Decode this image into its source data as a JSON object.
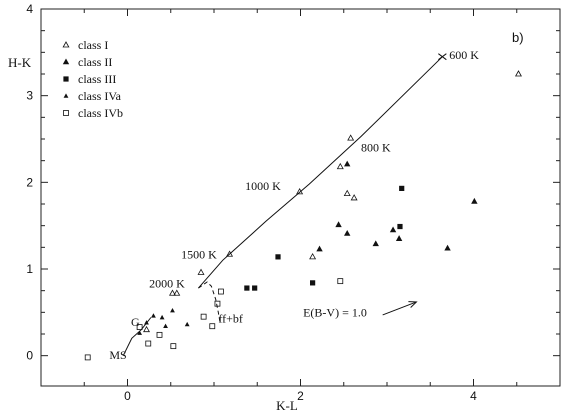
{
  "chart_data": {
    "type": "scatter",
    "panel_label": "b)",
    "xlabel": "K-L",
    "ylabel": "H-K",
    "xlim": [
      -1.0,
      5.0
    ],
    "ylim": [
      -0.35,
      4.0
    ],
    "xticks": [
      0,
      2,
      4
    ],
    "yticks": [
      0,
      1,
      2,
      3,
      4
    ],
    "legend_position": "top-left",
    "series": [
      {
        "name": "class I",
        "marker": "open-triangle",
        "points": [
          [
            0.52,
            0.72
          ],
          [
            0.57,
            0.72
          ],
          [
            0.85,
            0.96
          ],
          [
            1.18,
            1.17
          ],
          [
            1.99,
            1.89
          ],
          [
            2.46,
            2.18
          ],
          [
            2.54,
            1.87
          ],
          [
            2.62,
            1.82
          ],
          [
            2.58,
            2.51
          ],
          [
            4.52,
            3.25
          ],
          [
            2.14,
            1.14
          ],
          [
            0.22,
            0.3
          ]
        ]
      },
      {
        "name": "class II",
        "marker": "filled-triangle",
        "points": [
          [
            2.22,
            1.23
          ],
          [
            2.44,
            1.51
          ],
          [
            2.54,
            1.41
          ],
          [
            2.87,
            1.29
          ],
          [
            3.07,
            1.45
          ],
          [
            3.14,
            1.35
          ],
          [
            3.7,
            1.24
          ],
          [
            4.01,
            1.78
          ],
          [
            2.54,
            2.21
          ]
        ]
      },
      {
        "name": "class III",
        "marker": "filled-square",
        "points": [
          [
            1.38,
            0.78
          ],
          [
            1.47,
            0.78
          ],
          [
            1.74,
            1.14
          ],
          [
            2.14,
            0.84
          ],
          [
            3.15,
            1.49
          ],
          [
            3.17,
            1.93
          ]
        ]
      },
      {
        "name": "class IVa",
        "marker": "small-triangle",
        "points": [
          [
            0.3,
            0.46
          ],
          [
            0.4,
            0.44
          ],
          [
            0.52,
            0.52
          ],
          [
            0.69,
            0.36
          ],
          [
            0.14,
            0.26
          ],
          [
            0.22,
            0.38
          ],
          [
            0.44,
            0.34
          ]
        ]
      },
      {
        "name": "class IVb",
        "marker": "open-square",
        "points": [
          [
            -0.46,
            -0.02
          ],
          [
            0.24,
            0.14
          ],
          [
            0.37,
            0.24
          ],
          [
            0.53,
            0.11
          ],
          [
            0.88,
            0.45
          ],
          [
            0.98,
            0.34
          ],
          [
            1.08,
            0.74
          ],
          [
            1.04,
            0.6
          ],
          [
            2.46,
            0.86
          ],
          [
            0.14,
            0.33
          ]
        ]
      }
    ],
    "blackbody_curve": [
      [
        0.82,
        0.78
      ],
      [
        1.1,
        1.1
      ],
      [
        1.6,
        1.55
      ],
      [
        2.1,
        1.98
      ],
      [
        2.7,
        2.53
      ],
      [
        3.64,
        3.45
      ]
    ],
    "ms_curve": [
      [
        -0.05,
        0.0
      ],
      [
        0.05,
        0.2
      ],
      [
        0.16,
        0.3
      ],
      [
        0.27,
        0.44
      ]
    ],
    "ff_bf_curve": [
      [
        0.82,
        0.78
      ],
      [
        0.92,
        0.85
      ],
      [
        0.97,
        0.8
      ],
      [
        1.02,
        0.65
      ],
      [
        1.05,
        0.5
      ],
      [
        1.07,
        0.38
      ]
    ],
    "temperature_labels": [
      {
        "text": "600 K",
        "x": 3.72,
        "y": 3.47
      },
      {
        "text": "800 K",
        "x": 2.7,
        "y": 2.4
      },
      {
        "text": "1000 K",
        "x": 1.36,
        "y": 1.96
      },
      {
        "text": "1500 K",
        "x": 0.62,
        "y": 1.17
      },
      {
        "text": "2000 K",
        "x": 0.25,
        "y": 0.83
      }
    ],
    "annotations": [
      {
        "text": "G",
        "x": 0.04,
        "y": 0.39
      },
      {
        "text": "MS",
        "x": -0.21,
        "y": 0.01
      },
      {
        "text": "ff+bf",
        "x": 1.05,
        "y": 0.43
      },
      {
        "text": "E(B-V) = 1.0",
        "x": 2.03,
        "y": 0.5
      }
    ],
    "reddening_arrow": {
      "from": [
        2.95,
        0.47
      ],
      "to": [
        3.34,
        0.62
      ]
    }
  }
}
